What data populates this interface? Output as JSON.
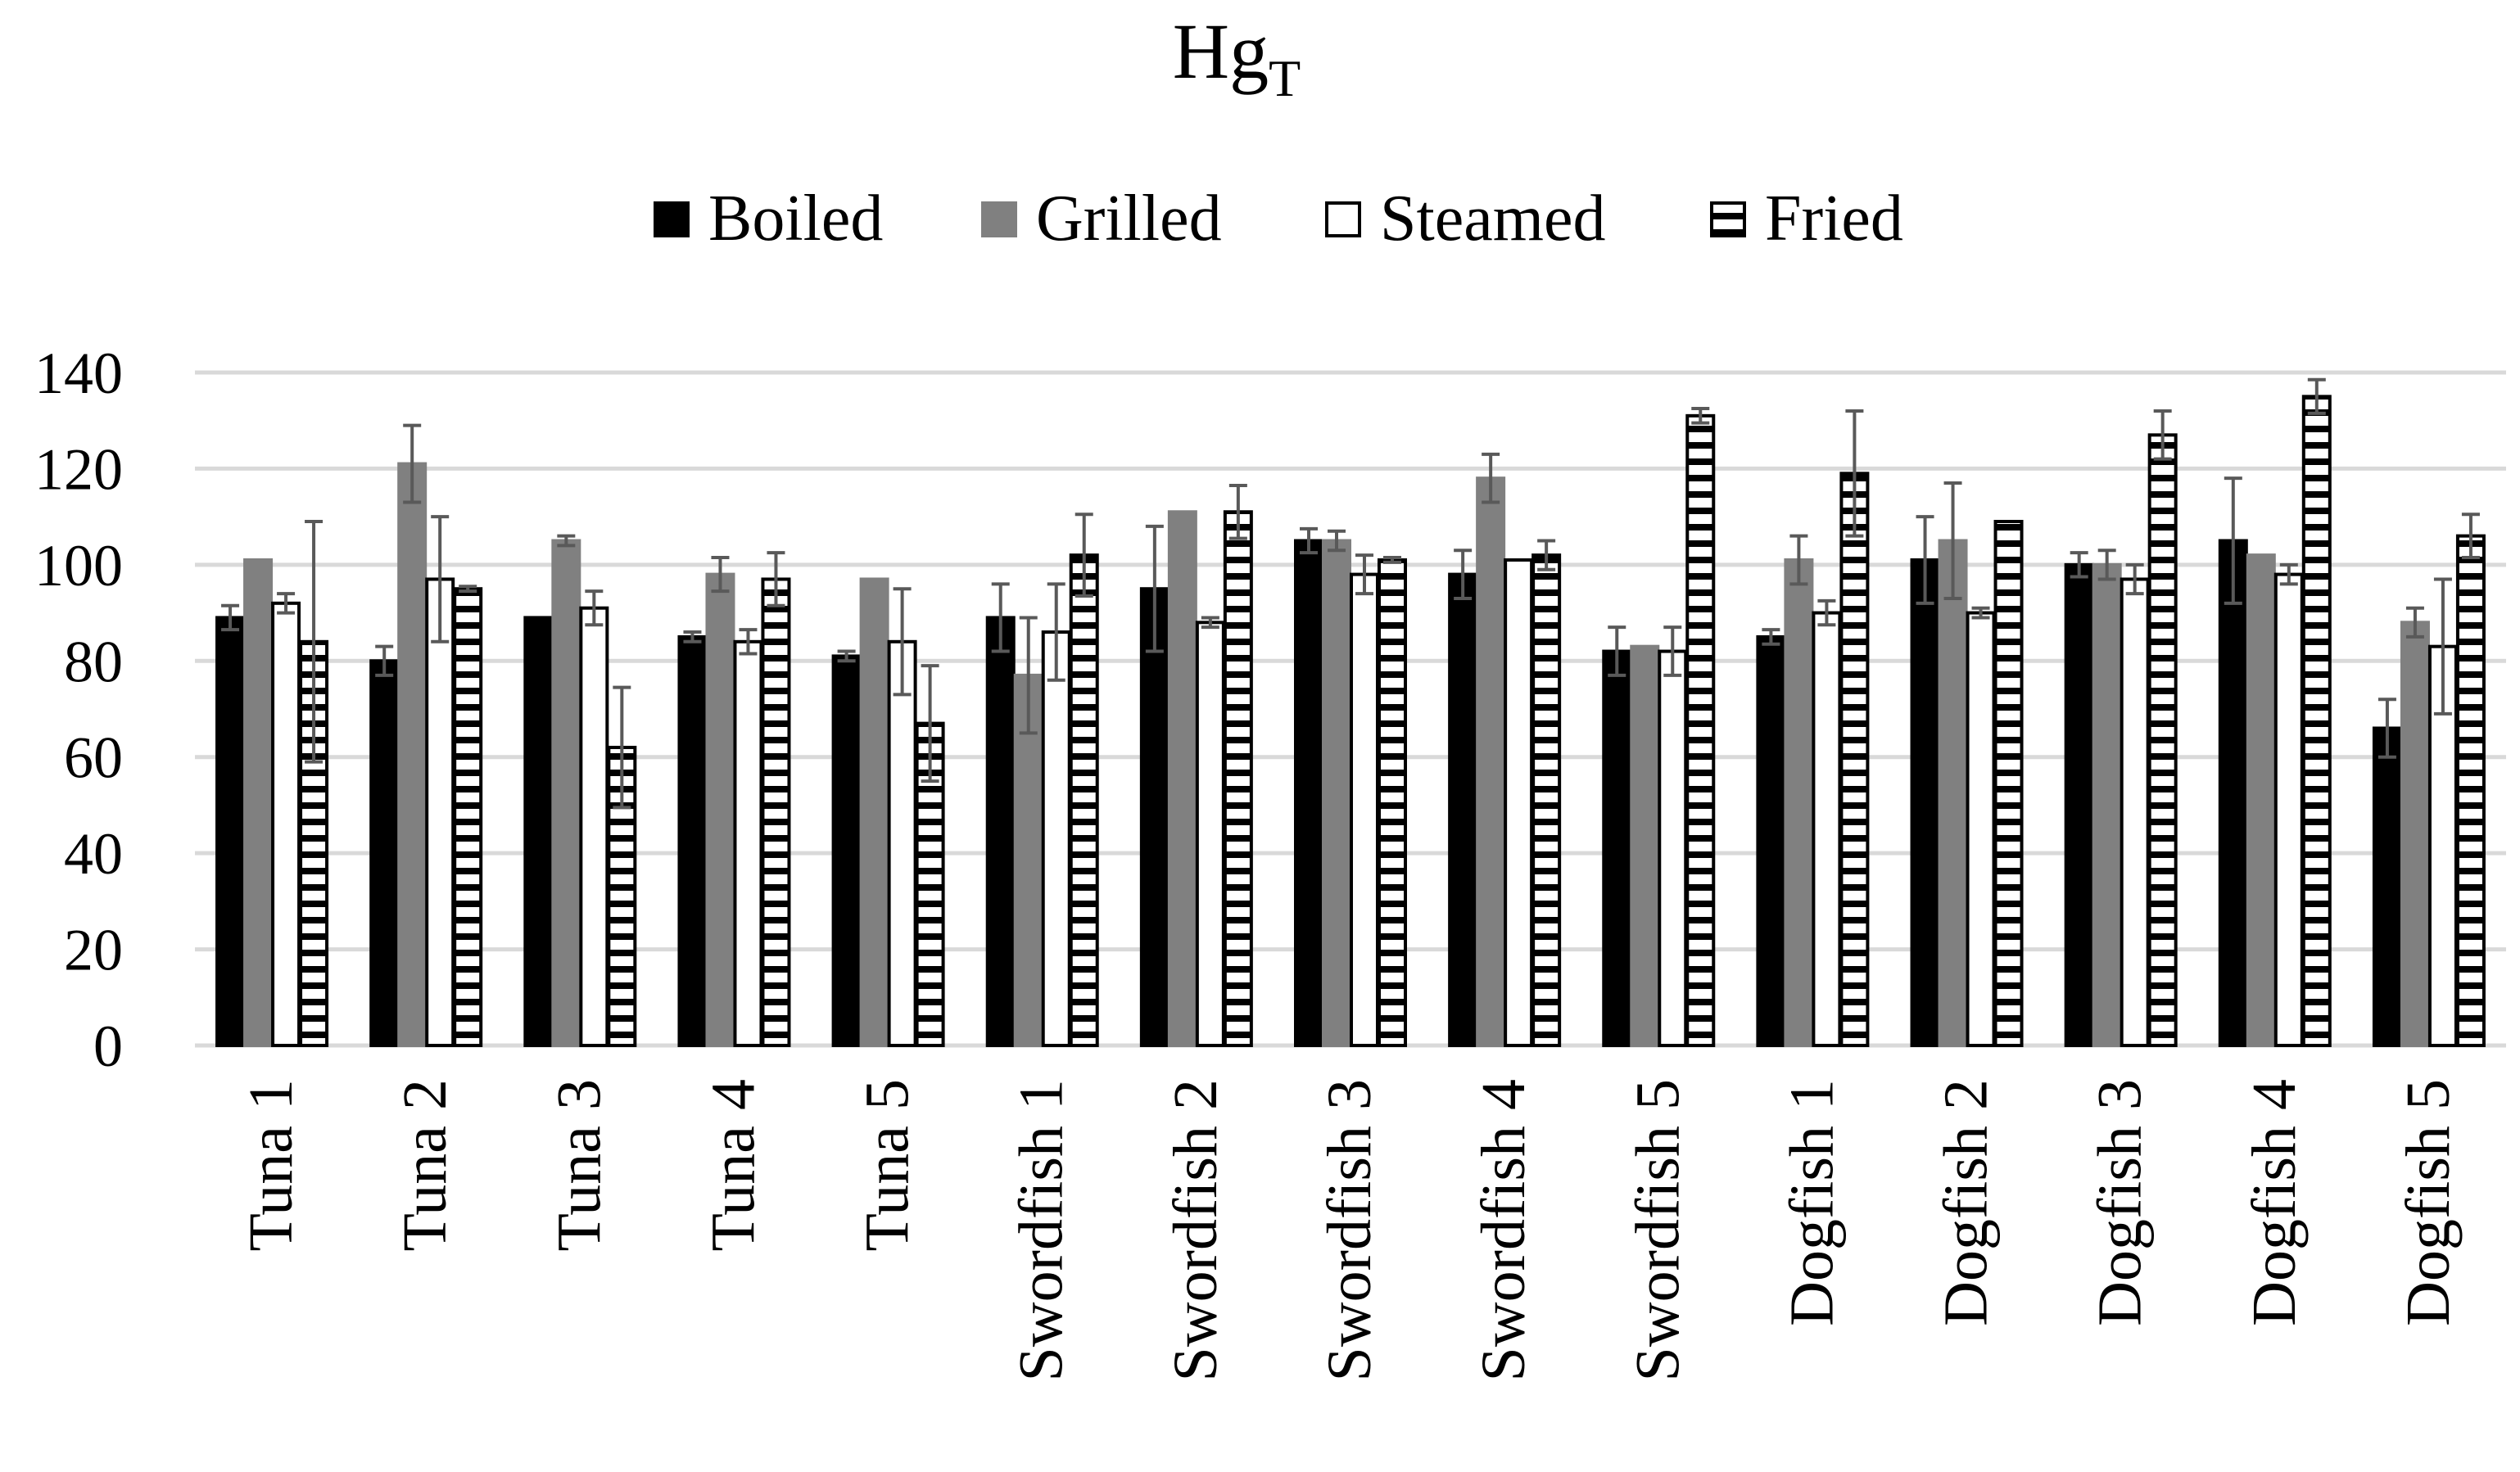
{
  "chart_data": {
    "type": "bar",
    "title": "Hg",
    "title_subscript": "T",
    "xlabel": "",
    "ylabel": "",
    "ylim": [
      0,
      140
    ],
    "yticks": [
      0,
      20,
      40,
      60,
      80,
      100,
      120,
      140
    ],
    "grid": true,
    "legend_position": "top",
    "categories": [
      "Tuna 1",
      "Tuna 2",
      "Tuna 3",
      "Tuna 4",
      "Tuna 5",
      "Swordfish 1",
      "Swordfish 2",
      "Swordfish 3",
      "Swordfish 4",
      "Swordfish 5",
      "Dogfish 1",
      "Dogfish 2",
      "Dogfish 3",
      "Dogfish 4",
      "Dogfish 5"
    ],
    "series": [
      {
        "name": "Boiled",
        "pattern": "solid-black",
        "values": [
          89,
          80,
          89,
          85,
          81,
          89,
          95,
          105,
          98,
          82,
          85,
          101,
          100,
          105,
          66
        ],
        "errors": [
          2.5,
          3,
          0,
          1,
          1,
          7,
          13,
          2.5,
          5,
          5,
          1.5,
          9,
          2.5,
          13,
          6
        ]
      },
      {
        "name": "Grilled",
        "pattern": "solid-gray",
        "values": [
          101,
          121,
          105,
          98,
          97,
          77,
          111,
          105,
          118,
          83,
          101,
          105,
          100,
          102,
          88
        ],
        "errors": [
          0,
          8,
          1,
          3.5,
          0,
          12,
          0,
          2,
          5,
          0,
          5,
          12,
          3,
          0,
          3
        ]
      },
      {
        "name": "Steamed",
        "pattern": "white",
        "values": [
          92,
          97,
          91,
          84,
          84,
          86,
          88,
          98,
          101,
          82,
          90,
          90,
          97,
          98,
          83
        ],
        "errors": [
          2,
          13,
          3.5,
          2.5,
          11,
          10,
          1,
          4,
          0,
          5,
          2.5,
          1,
          3,
          2,
          14
        ]
      },
      {
        "name": "Fried",
        "pattern": "horizontal-stripes",
        "values": [
          84,
          95,
          62,
          97,
          67,
          102,
          111,
          101,
          102,
          131,
          119,
          109,
          127,
          135,
          106
        ],
        "errors": [
          25,
          0.5,
          12.5,
          5.5,
          12,
          8.5,
          5.5,
          0.5,
          3,
          1.5,
          13,
          0,
          5,
          3.5,
          4.5
        ]
      }
    ]
  }
}
